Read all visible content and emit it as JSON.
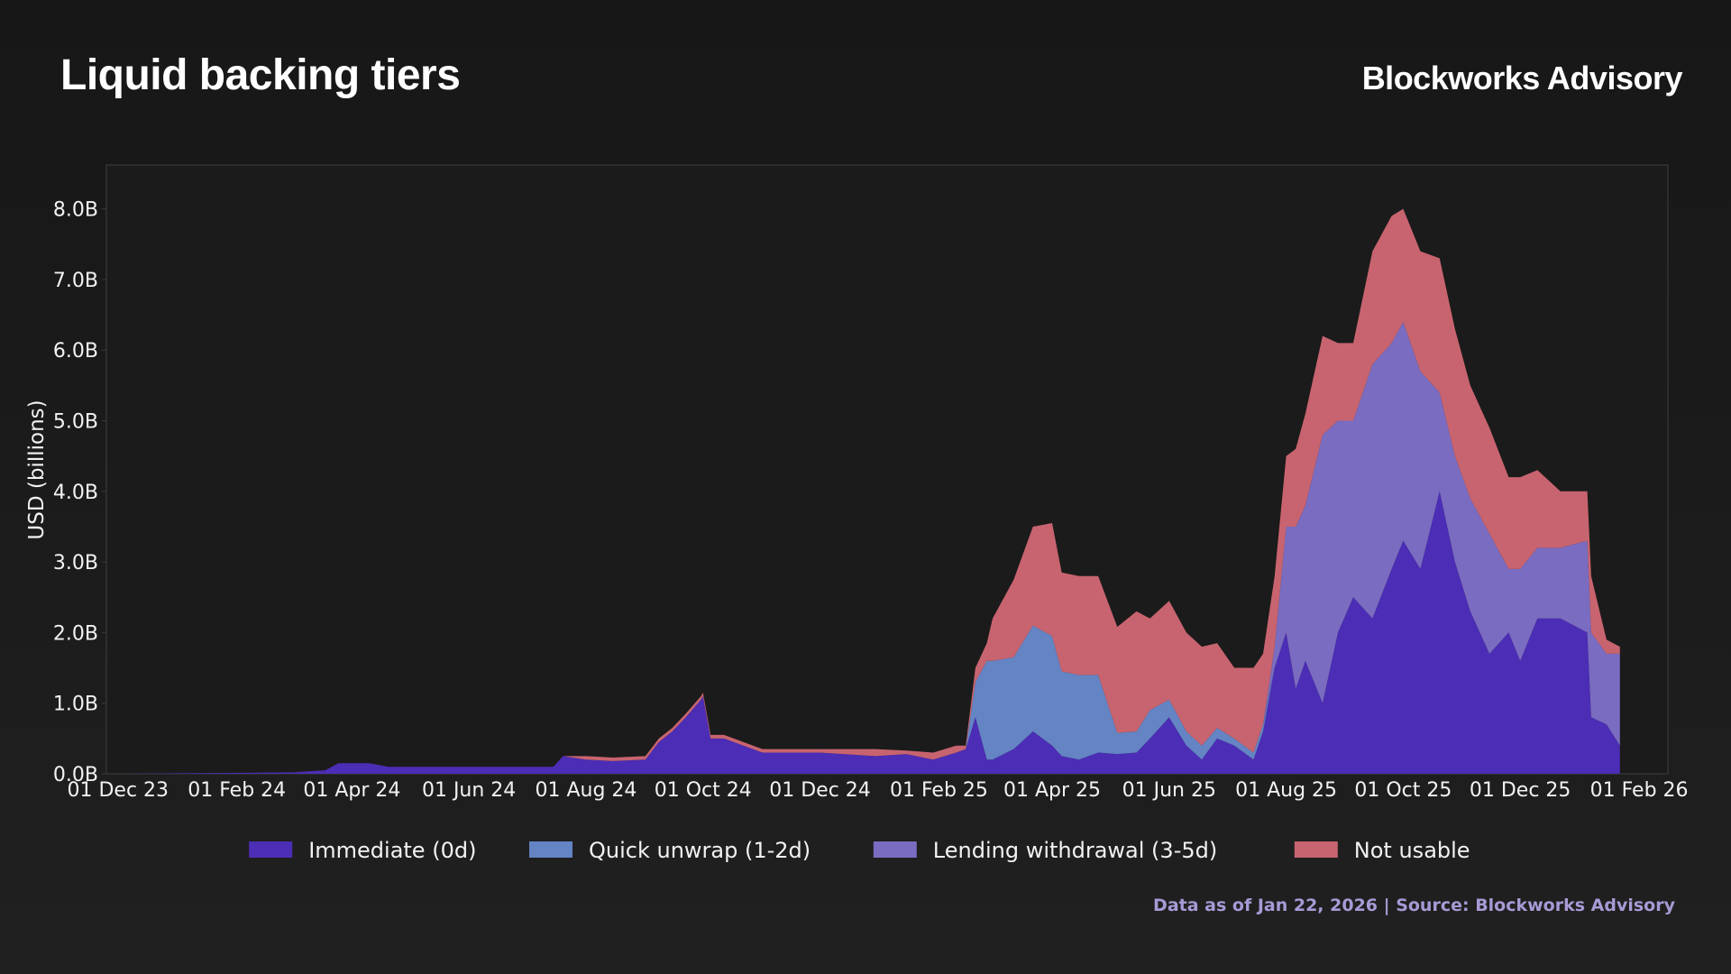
{
  "header": {
    "title": "Liquid backing tiers",
    "brand": "Blockworks Advisory"
  },
  "footer": {
    "source": "Data as of Jan 22, 2026 | Source: Blockworks Advisory"
  },
  "colors": {
    "immediate": "#4c2db5",
    "quick_unwrap": "#6484c4",
    "lending_withdrawal": "#7a6cc0",
    "not_usable": "#c8646f",
    "plot_background": "#1b1b1b",
    "plot_border": "#3a3a3a"
  },
  "chart_data": {
    "type": "area",
    "stacked": true,
    "ylabel": "USD (billions)",
    "ylim": [
      0,
      8.6
    ],
    "y_ticks": [
      0,
      1,
      2,
      3,
      4,
      5,
      6,
      7,
      8
    ],
    "y_tick_labels": [
      "0.0B",
      "1.0B",
      "2.0B",
      "3.0B",
      "4.0B",
      "5.0B",
      "6.0B",
      "7.0B",
      "8.0B"
    ],
    "x_ticks": [
      "2023-12-01",
      "2024-02-01",
      "2024-04-01",
      "2024-06-01",
      "2024-08-01",
      "2024-10-01",
      "2024-12-01",
      "2025-02-01",
      "2025-04-01",
      "2025-06-01",
      "2025-08-01",
      "2025-10-01",
      "2025-12-01",
      "2026-02-01"
    ],
    "x_tick_labels": [
      "01 Dec 23",
      "01 Feb 24",
      "01 Apr 24",
      "01 Jun 24",
      "01 Aug 24",
      "01 Oct 24",
      "01 Dec 24",
      "01 Feb 25",
      "01 Apr 25",
      "01 Jun 25",
      "01 Aug 25",
      "01 Oct 25",
      "01 Dec 25",
      "01 Feb 26"
    ],
    "xlim": [
      "2023-11-25",
      "2026-02-16"
    ],
    "legend_position": "bottom-center",
    "grid": false,
    "x": [
      "2023-12-01",
      "2024-03-01",
      "2024-03-18",
      "2024-03-25",
      "2024-04-10",
      "2024-04-20",
      "2024-05-01",
      "2024-06-15",
      "2024-07-15",
      "2024-07-20",
      "2024-08-01",
      "2024-08-15",
      "2024-09-01",
      "2024-09-08",
      "2024-09-15",
      "2024-09-22",
      "2024-09-30",
      "2024-10-01",
      "2024-10-05",
      "2024-10-12",
      "2024-11-01",
      "2024-12-01",
      "2024-12-30",
      "2025-01-15",
      "2025-01-29",
      "2025-02-10",
      "2025-02-15",
      "2025-02-20",
      "2025-02-26",
      "2025-03-01",
      "2025-03-12",
      "2025-03-22",
      "2025-04-01",
      "2025-04-06",
      "2025-04-15",
      "2025-04-25",
      "2025-05-05",
      "2025-05-15",
      "2025-05-22",
      "2025-06-01",
      "2025-06-10",
      "2025-06-18",
      "2025-06-26",
      "2025-07-05",
      "2025-07-15",
      "2025-07-20",
      "2025-07-26",
      "2025-08-01",
      "2025-08-06",
      "2025-08-11",
      "2025-08-20",
      "2025-08-28",
      "2025-09-05",
      "2025-09-15",
      "2025-09-25",
      "2025-10-01",
      "2025-10-10",
      "2025-10-20",
      "2025-10-28",
      "2025-11-05",
      "2025-11-15",
      "2025-11-25",
      "2025-12-01",
      "2025-12-10",
      "2025-12-22",
      "2026-01-05",
      "2026-01-07",
      "2026-01-15",
      "2026-01-22"
    ],
    "series": [
      {
        "name": "Immediate (0d)",
        "values": [
          0,
          0.02,
          0.05,
          0.15,
          0.15,
          0.1,
          0.1,
          0.1,
          0.1,
          0.25,
          0.2,
          0.18,
          0.2,
          0.45,
          0.6,
          0.8,
          1.05,
          1.1,
          0.5,
          0.5,
          0.3,
          0.3,
          0.25,
          0.28,
          0.2,
          0.3,
          0.35,
          0.8,
          0.2,
          0.2,
          0.35,
          0.6,
          0.4,
          0.25,
          0.2,
          0.3,
          0.28,
          0.3,
          0.5,
          0.8,
          0.4,
          0.2,
          0.5,
          0.4,
          0.2,
          0.6,
          1.5,
          2.0,
          1.2,
          1.6,
          1.0,
          2.0,
          2.5,
          2.2,
          2.9,
          3.3,
          2.9,
          4.0,
          3.0,
          2.3,
          1.7,
          2.0,
          1.6,
          2.2,
          2.2,
          2.0,
          0.8,
          0.7,
          0.4
        ]
      },
      {
        "name": "Quick unwrap (1-2d)",
        "values": [
          0,
          0,
          0,
          0,
          0,
          0,
          0,
          0,
          0,
          0,
          0,
          0,
          0,
          0,
          0,
          0,
          0,
          0,
          0,
          0,
          0,
          0,
          0,
          0,
          0,
          0,
          0,
          0.5,
          1.4,
          1.4,
          1.3,
          1.5,
          1.55,
          1.2,
          1.2,
          1.1,
          0.3,
          0.3,
          0.4,
          0.25,
          0.2,
          0.2,
          0.15,
          0.1,
          0.1,
          0.1,
          0,
          0,
          0,
          0,
          0,
          0,
          0,
          0,
          0,
          0,
          0,
          0,
          0,
          0,
          0,
          0,
          0,
          0,
          0,
          0,
          0,
          0,
          0
        ]
      },
      {
        "name": "Lending withdrawal (3-5d)",
        "values": [
          0,
          0,
          0,
          0,
          0,
          0,
          0,
          0,
          0,
          0,
          0,
          0,
          0,
          0,
          0,
          0,
          0,
          0,
          0,
          0,
          0,
          0,
          0,
          0,
          0,
          0,
          0,
          0,
          0,
          0,
          0,
          0,
          0,
          0,
          0,
          0,
          0,
          0,
          0,
          0,
          0,
          0,
          0,
          0,
          0,
          0,
          0.3,
          1.5,
          2.3,
          2.2,
          3.8,
          3.0,
          2.5,
          3.6,
          3.2,
          3.1,
          2.8,
          1.4,
          1.5,
          1.6,
          1.7,
          0.9,
          1.3,
          1.0,
          1.0,
          1.3,
          1.2,
          1.0,
          1.3
        ]
      },
      {
        "name": "Not usable",
        "values": [
          0,
          0,
          0,
          0,
          0,
          0,
          0,
          0,
          0,
          0,
          0.05,
          0.05,
          0.05,
          0.05,
          0.05,
          0.05,
          0.05,
          0.05,
          0.05,
          0.05,
          0.05,
          0.05,
          0.1,
          0.05,
          0.1,
          0.1,
          0.05,
          0.2,
          0.25,
          0.6,
          1.1,
          1.4,
          1.6,
          1.4,
          1.4,
          1.4,
          1.5,
          1.7,
          1.3,
          1.4,
          1.4,
          1.4,
          1.2,
          1.0,
          1.2,
          1.0,
          1.0,
          1.0,
          1.1,
          1.3,
          1.4,
          1.1,
          1.1,
          1.6,
          1.8,
          1.6,
          1.7,
          1.9,
          1.8,
          1.6,
          1.5,
          1.3,
          1.3,
          1.1,
          0.8,
          0.7,
          0.8,
          0.2,
          0.1
        ]
      }
    ]
  }
}
